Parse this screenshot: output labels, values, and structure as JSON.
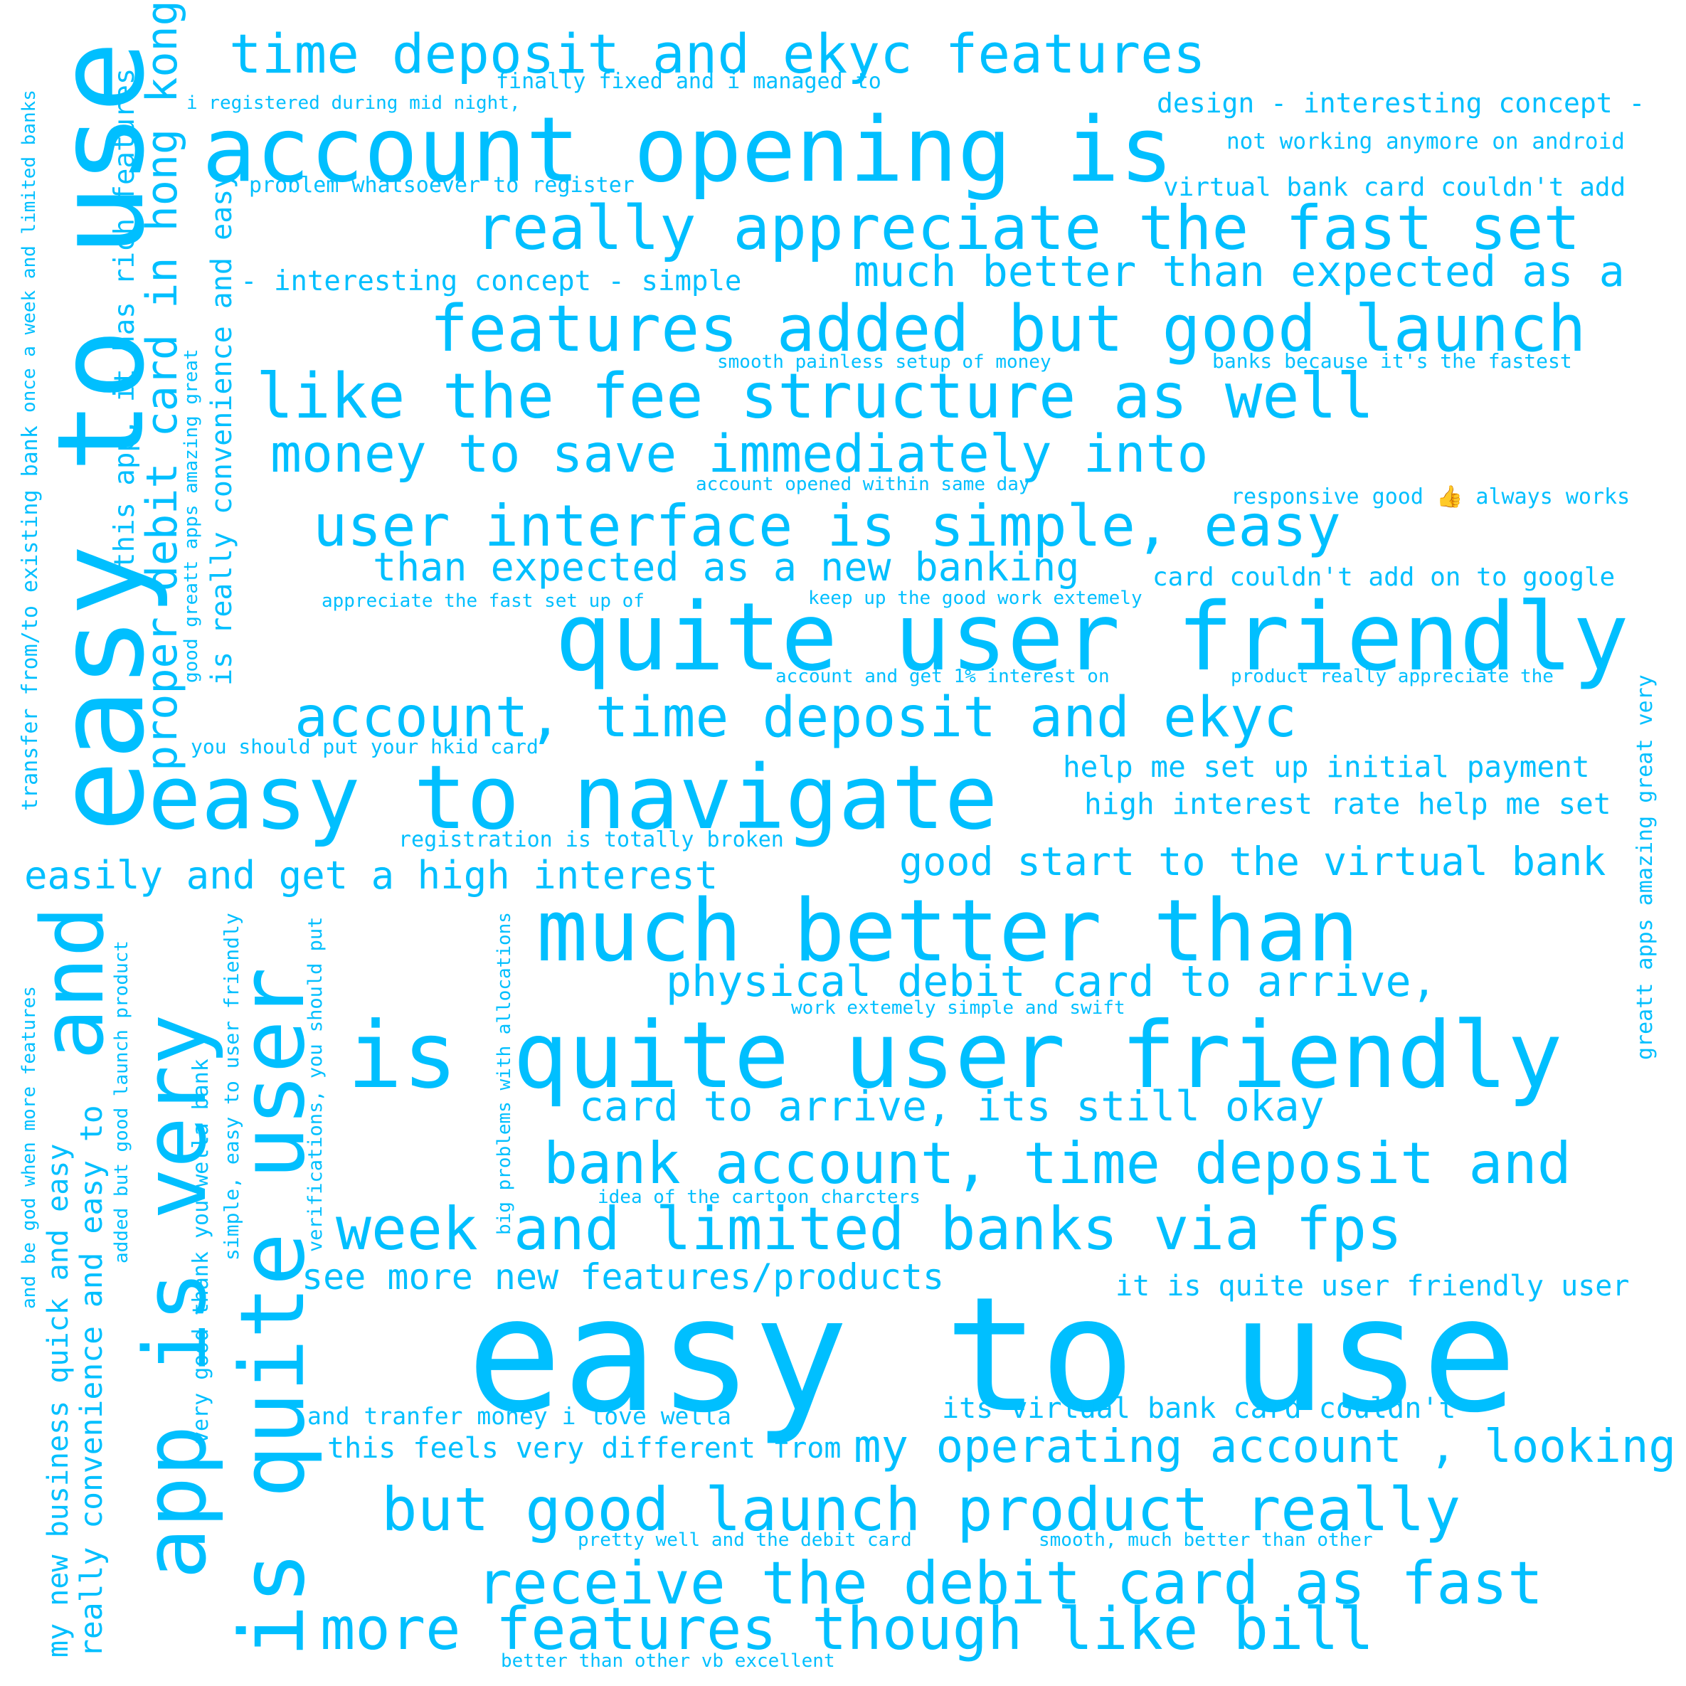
{
  "wordcloud": {
    "color": "#00bfff",
    "background": "#ffffff",
    "phrases": {
      "p01": "time deposit and ekyc features",
      "p02": "finally fixed and i managed to",
      "p03": "i registered during mid night,",
      "p04": "design - interesting concept -",
      "p05": "account opening is",
      "p06": "not working anymore on android",
      "p07": "problem whatsoever to register",
      "p08": "virtual bank card couldn't add",
      "p09": "really appreciate the fast set",
      "p10": "- interesting concept - simple",
      "p11": "much better than expected as a",
      "p12": "features added but good launch",
      "p13": "smooth painless setup of money",
      "p14": "banks because it's the fastest",
      "p15": "like the fee structure as well",
      "p16": "money to save immediately into",
      "p17": "account opened within same day",
      "p18": "responsive good 👍 always works",
      "p19": "user interface is simple, easy",
      "p20": "than expected as a new banking",
      "p21": "card couldn't add on to google",
      "p22": "appreciate the fast set up of",
      "p23": "keep up the good work extemely",
      "p24": "quite user friendly",
      "p25": "account and get 1% interest on",
      "p26": "product really appreciate the",
      "p27": "account, time deposit and ekyc",
      "p28": "you should put your hkid card",
      "p29": "help me set up initial payment",
      "p30": "easy to navigate",
      "p31": "high interest rate help me set",
      "p32": "registration is totally broken",
      "p33": "good start to the virtual bank",
      "p34": "easily and get a high interest",
      "p35": "much better than",
      "p36": "physical debit card to arrive,",
      "p37": "work extemely simple and swift",
      "p38": "is quite user friendly",
      "p39": "card to arrive, its still okay",
      "p40": "bank account, time deposit and",
      "p41": "idea of the cartoon charcters",
      "p42": "week and limited banks via fps",
      "p43": "see more new features/products",
      "p44": "it is quite user friendly user",
      "p45": "easy to use",
      "p46": "and tranfer money i love wella",
      "p47": "its virtual bank card couldn't",
      "p48": "this feels very different from",
      "p49": "my operating account , looking",
      "p50": "but good launch product really",
      "p51": "pretty well and the debit card",
      "p52": "smooth, much better than other",
      "p53": "receive the debit card as fast",
      "p54": "more features though like bill",
      "p55": "better than other vb excellent",
      "v01": "once a week and limited banks",
      "v02": "transfer from/to existing bank",
      "v03": "easy to use",
      "v04": "this app, it has rich features",
      "v05": "proper debit card in hong kong",
      "v06": "good greatt apps amazing great",
      "v07": "is really convenience and easy",
      "v08": "and be god when more features",
      "v09": "my new business quick and easy",
      "v10": "really convenience and easy to",
      "v11": "added but good launch product",
      "v12": "app is very",
      "v13": "and",
      "v14": "very good thank you wella bank",
      "v15": "is quite user",
      "v16": "simple, easy to user friendly",
      "v17": "verifications, you should put",
      "v18": "big problems with allocations",
      "v19": "greatt apps amazing great very"
    }
  }
}
